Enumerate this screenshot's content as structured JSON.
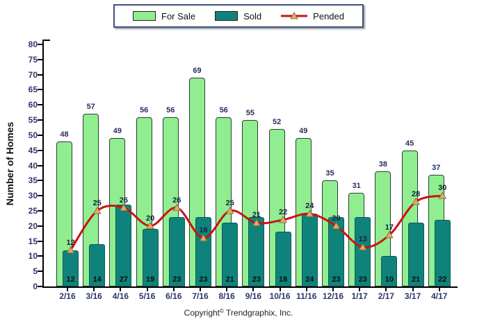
{
  "chart_data": {
    "type": "bar",
    "title": "",
    "ylabel": "Number of Homes",
    "xlabel": "",
    "ylim": [
      0,
      80
    ],
    "ytick_step": 5,
    "grid": false,
    "legend_position": "top",
    "categories": [
      "2/16",
      "3/16",
      "4/16",
      "5/16",
      "6/16",
      "7/16",
      "8/16",
      "9/16",
      "10/16",
      "11/16",
      "12/16",
      "1/17",
      "2/17",
      "3/17",
      "4/17"
    ],
    "series": [
      {
        "name": "For Sale",
        "kind": "bar",
        "fill": "#90EE90",
        "stroke": "#2b3b32",
        "label_color": "#25305a",
        "values": [
          48,
          57,
          49,
          56,
          56,
          69,
          56,
          55,
          52,
          49,
          35,
          31,
          38,
          45,
          37
        ]
      },
      {
        "name": "Sold",
        "kind": "bar",
        "fill": "#0F837B",
        "stroke": "#0a5b55",
        "label_color": "#0b0b0b",
        "values": [
          12,
          14,
          27,
          19,
          23,
          23,
          21,
          23,
          18,
          24,
          23,
          23,
          10,
          21,
          22
        ]
      },
      {
        "name": "Pended",
        "kind": "line",
        "line_color": "#CC1111",
        "marker": "triangle",
        "marker_fill": "#FFA44D",
        "marker_stroke": "#6b7d5e",
        "label_color": "#14203c",
        "values": [
          12,
          25,
          26,
          20,
          26,
          16,
          25,
          21,
          22,
          24,
          20,
          13,
          17,
          28,
          30
        ]
      }
    ],
    "axis_tick_color": "#2c3668"
  },
  "footer": {
    "prefix": "Copyright",
    "symbol": "©",
    "suffix": "Trendgraphix, Inc."
  }
}
